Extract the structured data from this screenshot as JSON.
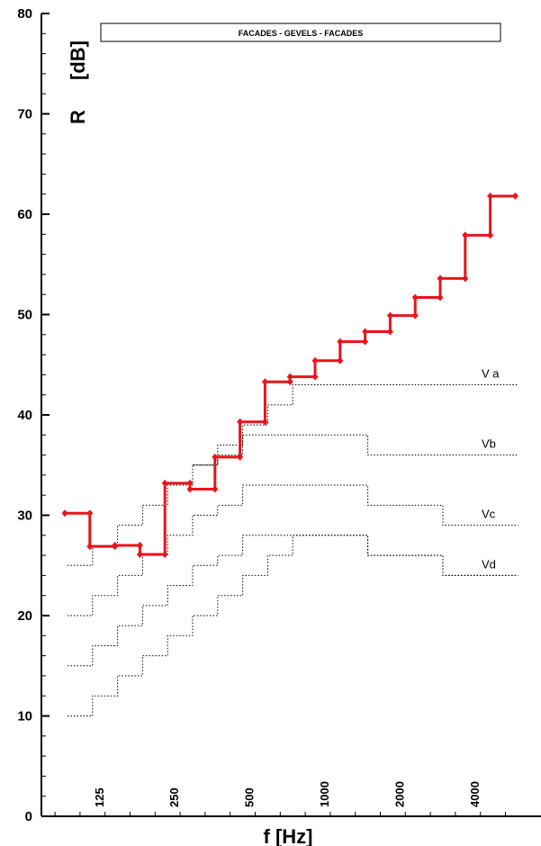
{
  "chart_data": {
    "type": "line",
    "title": "FACADES - GEVELS - FACADES",
    "xlabel": "f [Hz]",
    "ylabel_symbol": "R",
    "ylabel_unit": "[dB]",
    "ylim": [
      0,
      80
    ],
    "yticks": [
      "0",
      "10",
      "20",
      "30",
      "40",
      "50",
      "60",
      "70",
      "80"
    ],
    "xticks": [
      "125",
      "250",
      "500",
      "1000",
      "2000",
      "4000"
    ],
    "bands": [
      100,
      125,
      160,
      200,
      250,
      315,
      400,
      500,
      630,
      800,
      1000,
      1250,
      1600,
      2000,
      2500,
      3150,
      4000,
      5000
    ],
    "measured": {
      "color": "#e8141c",
      "values": [
        30.2,
        26.9,
        27.0,
        26.1,
        33.2,
        32.6,
        35.8,
        39.3,
        43.3,
        43.8,
        45.4,
        47.3,
        48.3,
        49.9,
        51.7,
        53.6,
        57.9,
        61.8
      ]
    },
    "reference_curves": [
      {
        "name": "V a",
        "values": [
          null,
          null,
          null,
          null,
          null,
          35,
          37,
          39,
          41,
          43,
          43,
          43,
          43,
          43,
          43,
          43,
          43,
          43
        ]
      },
      {
        "name": "Vb",
        "values": [
          25,
          27,
          29,
          31,
          33,
          35,
          36,
          38,
          38,
          38,
          38,
          38,
          36,
          36,
          36,
          36,
          36,
          36
        ]
      },
      {
        "name": "Vc",
        "values": [
          20,
          22,
          24,
          26,
          28,
          30,
          31,
          33,
          33,
          33,
          33,
          33,
          31,
          31,
          31,
          29,
          29,
          29
        ]
      },
      {
        "name": "Vd",
        "values": [
          15,
          17,
          19,
          21,
          23,
          25,
          26,
          28,
          28,
          28,
          28,
          28,
          26,
          26,
          26,
          24,
          24,
          24
        ]
      },
      {
        "name": "",
        "values": [
          10,
          12,
          14,
          16,
          18,
          20,
          22,
          24,
          26,
          28,
          28,
          28,
          26,
          26,
          26,
          24,
          24,
          24
        ]
      }
    ],
    "grid": false,
    "legend": "none"
  }
}
